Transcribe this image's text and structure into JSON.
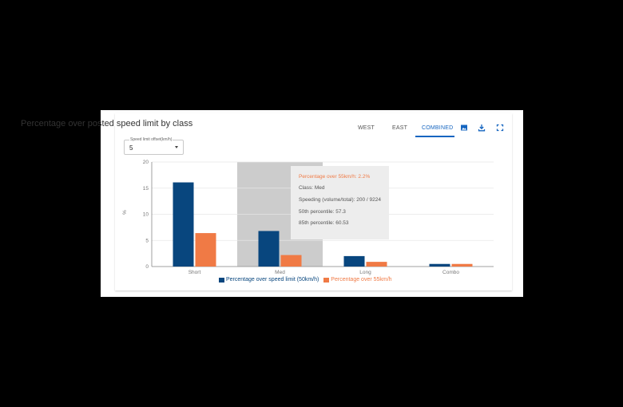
{
  "header": {
    "title": "Percentage over posted speed limit by class",
    "tabs": [
      {
        "label": "WEST",
        "active": false
      },
      {
        "label": "EAST",
        "active": false
      },
      {
        "label": "COMBINED",
        "active": true
      }
    ],
    "tools": [
      "image-icon",
      "download-icon",
      "fullscreen-icon"
    ]
  },
  "filter": {
    "label": "Speed limit offset(km/h)",
    "value": "5"
  },
  "colors": {
    "series1": "#08467e",
    "series2": "#f07a45",
    "accent": "#1565c0",
    "hover": "#cccccc"
  },
  "chart_data": {
    "type": "bar",
    "categories": [
      "Short",
      "Med",
      "Long",
      "Combo"
    ],
    "ylabel": "%",
    "xlabel": "",
    "ylim": [
      0,
      20
    ],
    "yticks": [
      0,
      5,
      10,
      15,
      20
    ],
    "grid": true,
    "legend": "bottom",
    "hovered_category": "Med",
    "series": [
      {
        "name": "Percentage over speed limit (50km/h)",
        "values": [
          16.1,
          6.8,
          2.0,
          0.5
        ]
      },
      {
        "name": "Percentage over 55km/h",
        "values": [
          6.4,
          2.2,
          0.9,
          0.5
        ]
      }
    ]
  },
  "tooltip": {
    "header": "Percentage over 55km/h: 2.2%",
    "class": "Class: Med",
    "speeding": "Speeding (volume/total): 200 / 9224",
    "p50": "50th percentile: 57.3",
    "p85": "85th percentile: 60.53"
  }
}
